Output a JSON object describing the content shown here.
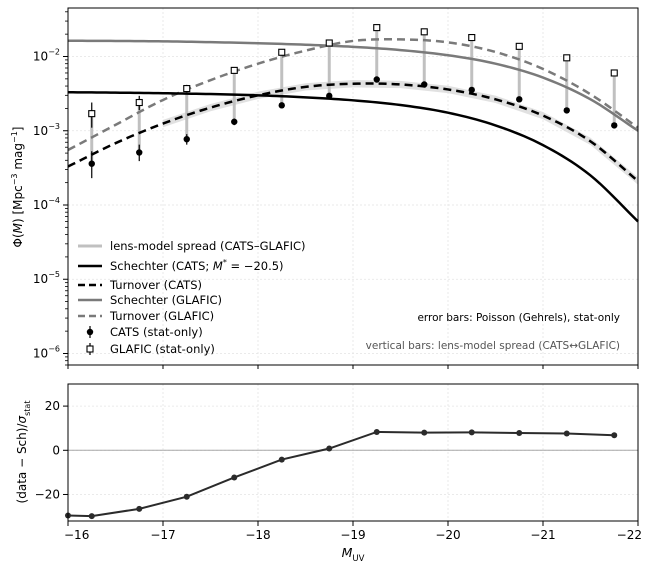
{
  "chart_data": [
    {
      "type": "line",
      "ylabel": "Φ(M) [Mpc⁻³ mag⁻¹]",
      "ylabel_parts": [
        "Φ(",
        "M",
        ") [Mpc",
        "−3",
        " mag",
        "−1",
        "]"
      ],
      "xlim": [
        -16,
        -22
      ],
      "ylim": [
        7e-07,
        0.045
      ],
      "yscale": "log",
      "grid": true,
      "legend_position": "lower-left",
      "y_ticks": [
        {
          "value": 1e-06,
          "base": "10",
          "exp": "−6"
        },
        {
          "value": 1e-05,
          "base": "10",
          "exp": "−5"
        },
        {
          "value": 0.0001,
          "base": "10",
          "exp": "−4"
        },
        {
          "value": 0.001,
          "base": "10",
          "exp": "−3"
        },
        {
          "value": 0.01,
          "base": "10",
          "exp": "−2"
        }
      ],
      "legend": {
        "spread": "lens-model spread (CATS–GLAFIC)",
        "schechter_cats": "Schechter (CATS; M* = −20.5)",
        "schechter_cats_parts": [
          "Schechter (CATS; ",
          "M",
          "*",
          " = −20.5)"
        ],
        "turnover_cats": "Turnover (CATS)",
        "schechter_glafic": "Schechter (GLAFIC)",
        "turnover_glafic": "Turnover (GLAFIC)",
        "cats_points": "CATS (stat-only)",
        "glafic_points": "GLAFIC (stat-only)"
      },
      "annotations": {
        "error_bars": "error bars: Poisson (Gehrels), stat-only",
        "vertical_bars": "vertical bars: lens-model spread (CATS↔GLAFIC)"
      },
      "cats_points": {
        "x": [
          -16.25,
          -16.75,
          -17.25,
          -17.75,
          -18.25,
          -18.75,
          -19.25,
          -19.75,
          -20.25,
          -20.75,
          -21.25,
          -21.75
        ],
        "y": [
          0.00036,
          0.00051,
          0.00077,
          0.00132,
          0.0022,
          0.00295,
          0.0049,
          0.0042,
          0.00355,
          0.00265,
          0.00188,
          0.00118
        ],
        "err_low": [
          0.00013,
          0.00012,
          0.00012,
          0.00013,
          0.00015,
          0.00017,
          0.00021,
          0.00019,
          0.00018,
          0.00015,
          0.00013,
          0.0001
        ],
        "err_high": [
          0.00017,
          0.00014,
          0.00013,
          0.00014,
          0.00016,
          0.00018,
          0.00022,
          0.0002,
          0.00019,
          0.00016,
          0.00014,
          0.00011
        ]
      },
      "glafic_points": {
        "x": [
          -16.25,
          -16.75,
          -17.25,
          -17.75,
          -18.25,
          -18.75,
          -19.25,
          -19.75,
          -20.25,
          -20.75,
          -21.25,
          -21.75
        ],
        "y": [
          0.0017,
          0.0024,
          0.0037,
          0.0065,
          0.0114,
          0.0152,
          0.0245,
          0.0215,
          0.018,
          0.0137,
          0.0096,
          0.006
        ],
        "err_low": [
          0.0006,
          0.0005,
          0.0004,
          0.0005,
          0.0006,
          0.0006,
          0.0008,
          0.0008,
          0.0007,
          0.0006,
          0.0005,
          0.0004
        ],
        "err_high": [
          0.0007,
          0.00055,
          0.00045,
          0.00055,
          0.00065,
          0.00065,
          0.00085,
          0.00085,
          0.00075,
          0.00065,
          0.00055,
          0.00045
        ]
      },
      "schechter_cats": {
        "x": [
          -16.0,
          -16.5,
          -17.0,
          -17.5,
          -18.0,
          -18.5,
          -19.0,
          -19.5,
          -20.0,
          -20.5,
          -21.0,
          -21.5,
          -22.0
        ],
        "y": [
          0.0033,
          0.00326,
          0.0032,
          0.00312,
          0.003,
          0.00282,
          0.00257,
          0.00222,
          0.00175,
          0.00118,
          0.00064,
          0.00025,
          6e-05
        ]
      },
      "turnover_cats": {
        "x": [
          -16.0,
          -16.5,
          -17.0,
          -17.5,
          -18.0,
          -18.5,
          -19.0,
          -19.5,
          -20.0,
          -20.5,
          -21.0,
          -21.5,
          -22.0
        ],
        "y": [
          0.00033,
          0.00068,
          0.00125,
          0.00205,
          0.003,
          0.0039,
          0.0043,
          0.0042,
          0.0036,
          0.00265,
          0.0016,
          0.00072,
          0.00021
        ]
      },
      "schechter_glafic": {
        "x": [
          -16.0,
          -16.5,
          -17.0,
          -17.5,
          -18.0,
          -18.5,
          -19.0,
          -19.5,
          -20.0,
          -20.5,
          -21.0,
          -21.5,
          -22.0
        ],
        "y": [
          0.0163,
          0.0162,
          0.016,
          0.0156,
          0.0151,
          0.0144,
          0.0135,
          0.0122,
          0.0104,
          0.008,
          0.0052,
          0.00265,
          0.001
        ]
      },
      "turnover_glafic": {
        "x": [
          -16.0,
          -16.5,
          -17.0,
          -17.5,
          -18.0,
          -18.5,
          -19.0,
          -19.5,
          -20.0,
          -20.5,
          -21.0,
          -21.5,
          -22.0
        ],
        "y": [
          0.00055,
          0.0012,
          0.0026,
          0.0048,
          0.008,
          0.012,
          0.0162,
          0.017,
          0.0155,
          0.0115,
          0.0068,
          0.0031,
          0.0011
        ]
      },
      "colors": {
        "cats": "#000000",
        "glafic": "#7a7a7a",
        "spread": "#c0c0c0",
        "band": "#d9d9d9"
      }
    },
    {
      "type": "line",
      "ylabel": "(data − Sch)/σstat",
      "ylabel_parts": [
        "(data − Sch)/",
        "σ",
        "stat"
      ],
      "xlabel": "MUV",
      "xlabel_parts": [
        "M",
        "UV"
      ],
      "xlim": [
        -16,
        -22
      ],
      "ylim": [
        -32,
        30
      ],
      "grid": true,
      "reference_line": 0,
      "x_ticks": [
        -16,
        -17,
        -18,
        -19,
        -20,
        -21,
        -22
      ],
      "x_tick_labels": [
        "−16",
        "−17",
        "−18",
        "−19",
        "−20",
        "−21",
        "−22"
      ],
      "y_ticks": [
        -20,
        0,
        20
      ],
      "y_tick_labels": [
        "−20",
        "0",
        "20"
      ],
      "series": [
        {
          "x": [
            -16.0,
            -16.25,
            -16.75,
            -17.25,
            -17.75,
            -18.25,
            -18.75,
            -19.25,
            -19.75,
            -20.25,
            -20.75,
            -21.25,
            -21.75
          ],
          "y": [
            -29.5,
            -29.8,
            -26.5,
            -21.0,
            -12.3,
            -4.2,
            0.8,
            8.3,
            8.0,
            8.1,
            7.8,
            7.6,
            6.8
          ]
        }
      ],
      "colors": {
        "line": "#2b2b2b",
        "zero": "#a8a8a8"
      }
    }
  ]
}
